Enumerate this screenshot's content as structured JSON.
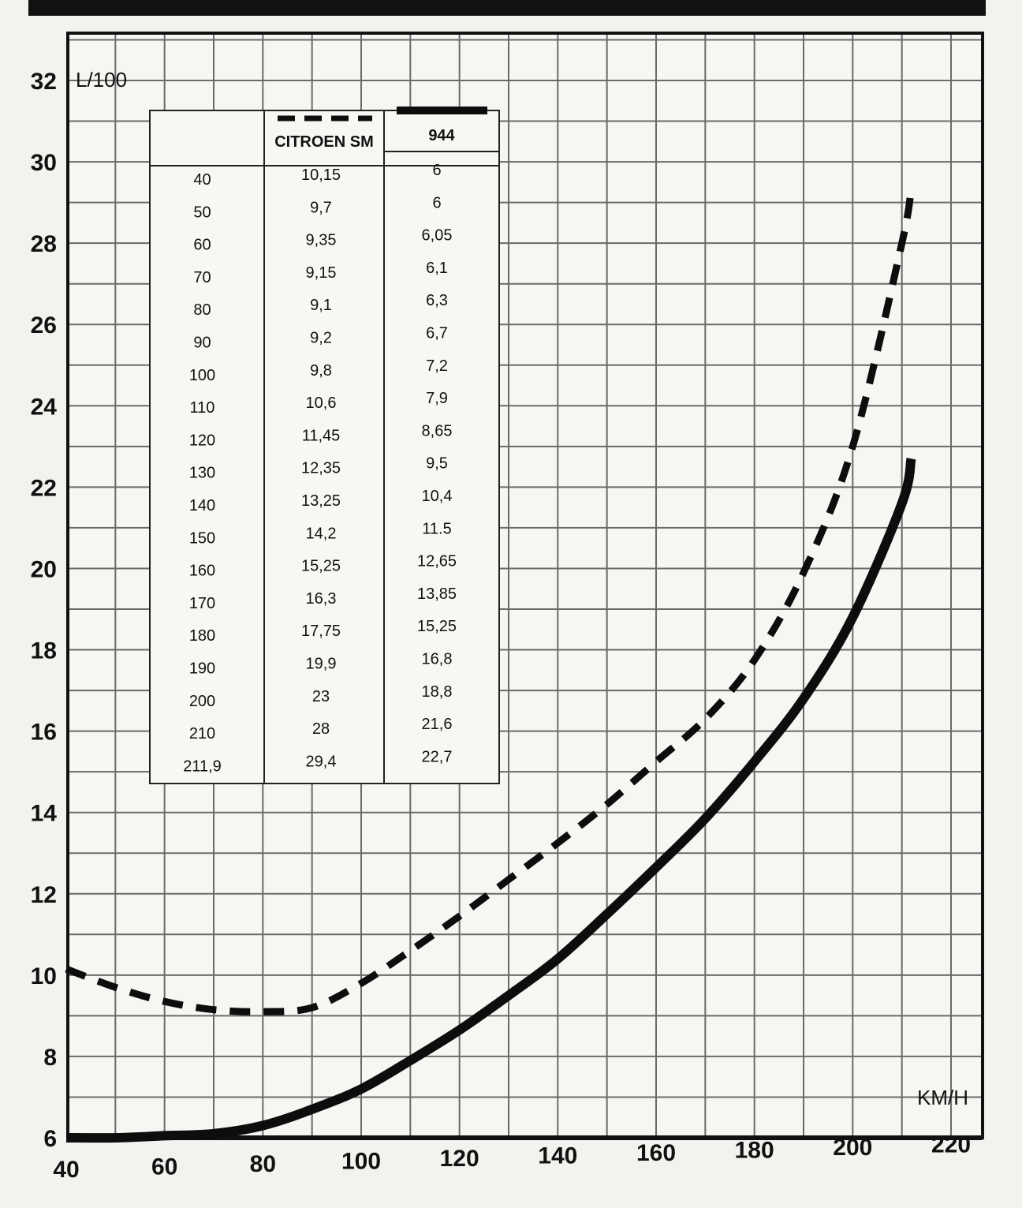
{
  "chart_data": {
    "type": "line",
    "ylabel": "L/100",
    "xlabel": "KM/H",
    "xlim": [
      40,
      220
    ],
    "ylim": [
      6,
      32
    ],
    "x_ticks": [
      40,
      60,
      80,
      100,
      120,
      140,
      160,
      180,
      200,
      220
    ],
    "y_ticks": [
      6,
      8,
      10,
      12,
      14,
      16,
      18,
      20,
      22,
      24,
      26,
      28,
      30,
      32
    ],
    "grid": true,
    "legend": "top-left table",
    "series": [
      {
        "name": "CITROEN SM",
        "style": "dashed",
        "x": [
          40,
          50,
          60,
          70,
          80,
          90,
          100,
          110,
          120,
          130,
          140,
          150,
          160,
          170,
          180,
          190,
          200,
          210,
          211.9
        ],
        "values": [
          10.15,
          9.7,
          9.35,
          9.15,
          9.1,
          9.2,
          9.8,
          10.6,
          11.45,
          12.35,
          13.25,
          14.2,
          15.25,
          16.3,
          17.75,
          19.9,
          23,
          28,
          29.4
        ]
      },
      {
        "name": "944",
        "style": "solid",
        "x": [
          40,
          50,
          60,
          70,
          80,
          90,
          100,
          110,
          120,
          130,
          140,
          150,
          160,
          170,
          180,
          190,
          200,
          210,
          211.9
        ],
        "values": [
          6,
          6,
          6.05,
          6.1,
          6.3,
          6.7,
          7.2,
          7.9,
          8.65,
          9.5,
          10.4,
          11.5,
          12.65,
          13.85,
          15.25,
          16.8,
          18.8,
          21.6,
          22.7
        ]
      }
    ],
    "table": {
      "header": [
        "",
        "CITROEN SM",
        "944"
      ],
      "rows": [
        [
          "40",
          "10,15",
          "6"
        ],
        [
          "50",
          "9,7",
          "6"
        ],
        [
          "60",
          "9,35",
          "6,05"
        ],
        [
          "70",
          "9,15",
          "6,1"
        ],
        [
          "80",
          "9,1",
          "6,3"
        ],
        [
          "90",
          "9,2",
          "6,7"
        ],
        [
          "100",
          "9,8",
          "7,2"
        ],
        [
          "110",
          "10,6",
          "7,9"
        ],
        [
          "120",
          "11,45",
          "8,65"
        ],
        [
          "130",
          "12,35",
          "9,5"
        ],
        [
          "140",
          "13,25",
          "10,4"
        ],
        [
          "150",
          "14,2",
          "11.5"
        ],
        [
          "160",
          "15,25",
          "12,65"
        ],
        [
          "170",
          "16,3",
          "13,85"
        ],
        [
          "180",
          "17,75",
          "15,25"
        ],
        [
          "190",
          "19,9",
          "16,8"
        ],
        [
          "200",
          "23",
          "18,8"
        ],
        [
          "210",
          "28",
          "21,6"
        ],
        [
          "211,9",
          "29,4",
          "22,7"
        ]
      ]
    }
  }
}
